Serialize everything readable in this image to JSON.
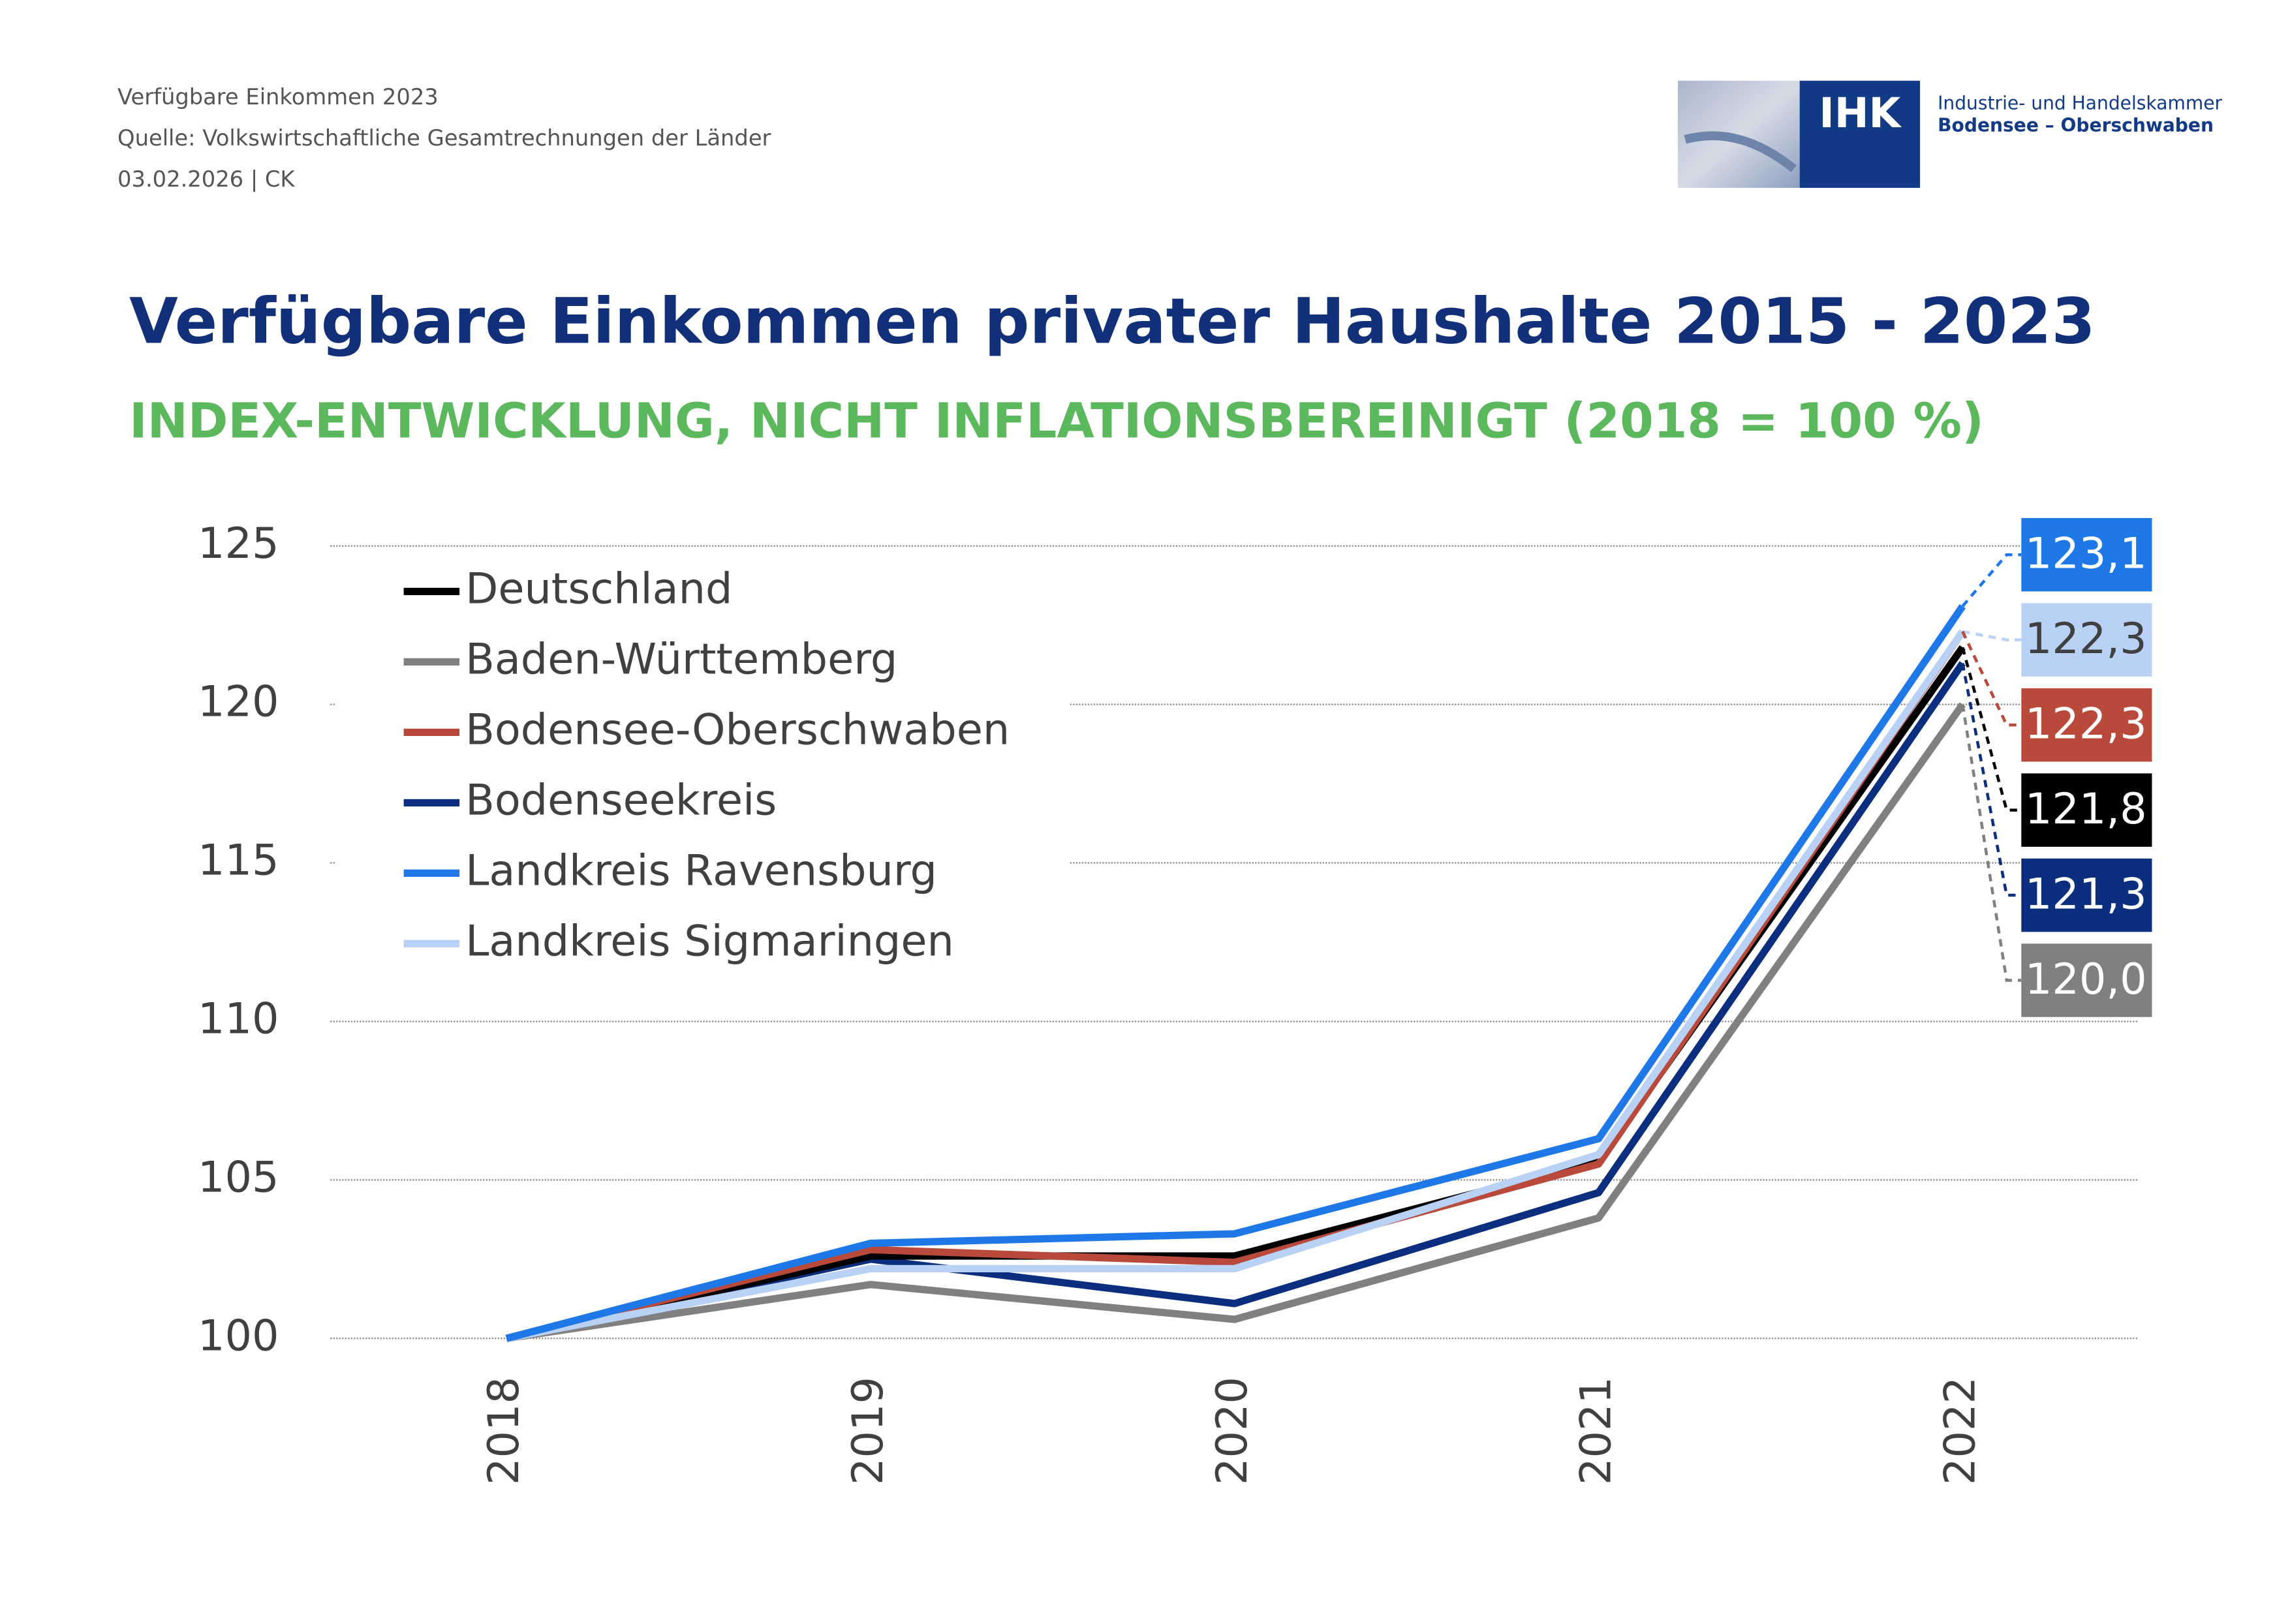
{
  "header": {
    "lines": [
      "Verfügbare Einkommen 2023",
      "Quelle: Volkswirtschaftliche Gesamtrechnungen der Länder",
      "03.02.2026 | CK"
    ],
    "logo": {
      "abbr": "IHK",
      "name": "Industrie- und Handelskammer",
      "region": "Bodensee – Oberschwaben"
    }
  },
  "chart_data": {
    "type": "line",
    "title": "Verfügbare Einkommen privater Haushalte 2015 - 2023",
    "subtitle": "INDEX-ENTWICKLUNG, NICHT INFLATIONSBEREINIGT (2018 = 100 %)",
    "categories": [
      "2018",
      "2019",
      "2020",
      "2021",
      "2022"
    ],
    "ylim": [
      100,
      125
    ],
    "yticks": [
      100,
      105,
      110,
      115,
      120,
      125
    ],
    "grid": true,
    "legend": "top-left",
    "series": [
      {
        "name": "Deutschland",
        "color": "#000000",
        "label_bg": "#000000",
        "label_color": "#ffffff",
        "values": [
          100,
          102.6,
          102.6,
          105.6,
          121.8
        ],
        "value_labels": [
          null,
          null,
          null,
          null,
          "121,8"
        ]
      },
      {
        "name": "Baden-Württemberg",
        "color": "#808080",
        "label_bg": "#808080",
        "label_color": "#ffffff",
        "values": [
          100,
          101.7,
          100.6,
          103.8,
          120.0
        ],
        "value_labels": [
          null,
          null,
          null,
          null,
          "120,0"
        ]
      },
      {
        "name": "Bodensee-Oberschwaben",
        "color": "#b94a3b",
        "label_bg": "#b94a3b",
        "label_color": "#ffffff",
        "values": [
          100,
          102.8,
          102.4,
          105.5,
          122.3
        ],
        "value_labels": [
          null,
          null,
          null,
          null,
          "122,3"
        ]
      },
      {
        "name": "Bodenseekreis",
        "color": "#0b2f7e",
        "label_bg": "#0b2f7e",
        "label_color": "#ffffff",
        "values": [
          100,
          102.5,
          101.1,
          104.6,
          121.3
        ],
        "value_labels": [
          null,
          null,
          null,
          null,
          "121,3"
        ]
      },
      {
        "name": "Landkreis Ravensburg",
        "color": "#1f78e8",
        "label_bg": "#1f78e8",
        "label_color": "#ffffff",
        "values": [
          100,
          103.0,
          103.3,
          106.3,
          123.1
        ],
        "value_labels": [
          null,
          null,
          null,
          null,
          "123,1"
        ]
      },
      {
        "name": "Landkreis Sigmaringen",
        "color": "#b8d1f5",
        "label_bg": "#b8d1f5",
        "label_color": "#404040",
        "values": [
          100,
          102.2,
          102.2,
          105.8,
          122.3
        ],
        "value_labels": [
          null,
          null,
          null,
          null,
          "122,3"
        ]
      }
    ]
  }
}
